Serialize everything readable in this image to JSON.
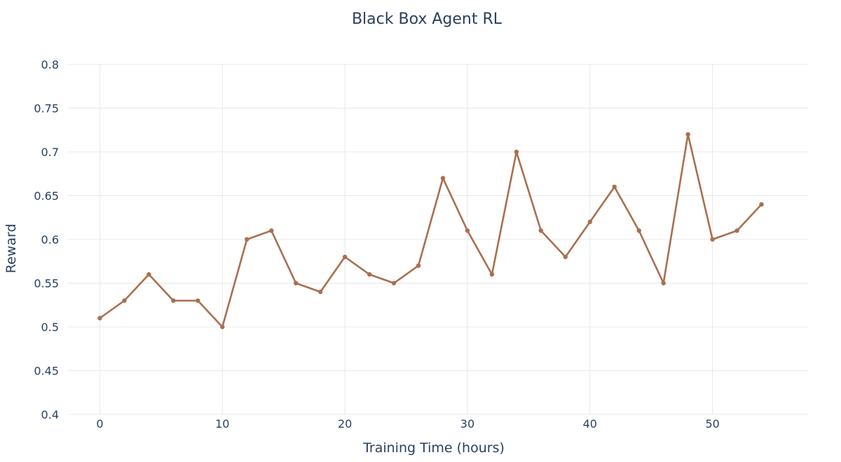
{
  "chart_data": {
    "type": "line",
    "title": "Black Box Agent RL",
    "xlabel": "Training Time (hours)",
    "ylabel": "Reward",
    "xlim": [
      -2.6,
      57.8
    ],
    "ylim": [
      0.4,
      0.8
    ],
    "x_ticks": [
      0,
      10,
      20,
      30,
      40,
      50
    ],
    "y_ticks": [
      0.4,
      0.45,
      0.5,
      0.55,
      0.6,
      0.65,
      0.7,
      0.75,
      0.8
    ],
    "y_tick_labels": [
      "0.4",
      "0.45",
      "0.5",
      "0.55",
      "0.6",
      "0.65",
      "0.7",
      "0.75",
      "0.8"
    ],
    "grid": true,
    "legend": "none",
    "series": [
      {
        "color": "#a8704f",
        "x": [
          0,
          2,
          4,
          6,
          8,
          10,
          12,
          14,
          16,
          18,
          20,
          22,
          24,
          26,
          28,
          30,
          32,
          34,
          36,
          38,
          40,
          42,
          44,
          46,
          48,
          50,
          52,
          54
        ],
        "y": [
          0.51,
          0.53,
          0.56,
          0.53,
          0.53,
          0.5,
          0.6,
          0.61,
          0.55,
          0.54,
          0.58,
          0.56,
          0.55,
          0.57,
          0.67,
          0.61,
          0.56,
          0.7,
          0.61,
          0.58,
          0.62,
          0.66,
          0.61,
          0.55,
          0.72,
          0.6,
          0.61,
          0.64
        ]
      }
    ]
  }
}
